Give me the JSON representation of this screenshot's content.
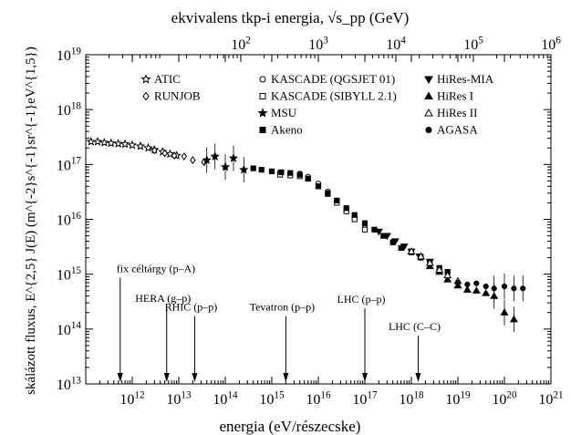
{
  "chart_data": {
    "type": "scatter",
    "title": "",
    "xlabel": "energia (eV/részecske)",
    "ylabel": "skálázott fluxus, E^{2,5} J(E) (m^{-2}s^{-1}sr^{-1}eV^{1,5})",
    "top_axis_label": "ekvivalens tkp-i energia, √s_pp (GeV)",
    "x_scale": "log",
    "y_scale": "log",
    "xlim": [
      100000000000.0,
      1e+21
    ],
    "ylim": [
      10000000000000.0,
      1e+19
    ],
    "top_xlim": [
      1,
      1000000.0
    ],
    "x_ticks": [
      {
        "exp": "12",
        "value": 1000000000000.0
      },
      {
        "exp": "13",
        "value": 10000000000000.0
      },
      {
        "exp": "14",
        "value": 100000000000000.0
      },
      {
        "exp": "15",
        "value": 1000000000000000.0
      },
      {
        "exp": "16",
        "value": 1e+16
      },
      {
        "exp": "17",
        "value": 1e+17
      },
      {
        "exp": "18",
        "value": 1e+18
      },
      {
        "exp": "19",
        "value": 1e+19
      },
      {
        "exp": "20",
        "value": 1e+20
      },
      {
        "exp": "21",
        "value": 1e+21
      }
    ],
    "y_ticks": [
      {
        "exp": "13",
        "value": 10000000000000.0
      },
      {
        "exp": "14",
        "value": 100000000000000.0
      },
      {
        "exp": "15",
        "value": 1000000000000000.0
      },
      {
        "exp": "16",
        "value": 1e+16
      },
      {
        "exp": "17",
        "value": 1e+17
      },
      {
        "exp": "18",
        "value": 1e+18
      },
      {
        "exp": "19",
        "value": 1e+19
      }
    ],
    "top_ticks": [
      {
        "exp": "2",
        "value": 100
      },
      {
        "exp": "3",
        "value": 1000
      },
      {
        "exp": "4",
        "value": 10000
      },
      {
        "exp": "5",
        "value": 100000
      },
      {
        "exp": "6",
        "value": 1000000
      }
    ],
    "grid": false,
    "legend_position": "top",
    "legend": [
      {
        "label": "ATIC",
        "marker": "star-open"
      },
      {
        "label": "RUNJOB",
        "marker": "diamond-open"
      },
      {
        "label": "KASCADE (QGSJET 01)",
        "marker": "circle-open"
      },
      {
        "label": "KASCADE (SIBYLL 2.1)",
        "marker": "square-open"
      },
      {
        "label": "MSU",
        "marker": "star-filled"
      },
      {
        "label": "Akeno",
        "marker": "square-filled"
      },
      {
        "label": "HiRes-MIA",
        "marker": "triangle-down-filled"
      },
      {
        "label": "HiRes I",
        "marker": "triangle-up-filled"
      },
      {
        "label": "HiRes II",
        "marker": "triangle-up-open"
      },
      {
        "label": "AGASA",
        "marker": "circle-filled"
      }
    ],
    "series": [
      {
        "name": "ATIC",
        "marker": "star-open",
        "x": [
          130000000000.0,
          180000000000.0,
          250000000000.0,
          350000000000.0,
          500000000000.0,
          700000000000.0,
          1000000000000.0,
          1500000000000.0,
          2200000000000.0,
          3000000000000.0,
          4500000000000.0,
          6500000000000.0,
          9000000000000.0
        ],
        "y": [
          2.6e+17,
          2.6e+17,
          2.5e+17,
          2.45e+17,
          2.4e+17,
          2.35e+17,
          2.25e+17,
          2.15e+17,
          2e+17,
          1.85e+17,
          1.7e+17,
          1.55e+17,
          1.45e+17
        ]
      },
      {
        "name": "RUNJOB",
        "marker": "diamond-open",
        "x": [
          3000000000000.0,
          5000000000000.0,
          8000000000000.0,
          13000000000000.0,
          20000000000000.0,
          35000000000000.0
        ],
        "y": [
          1.8e+17,
          1.6e+17,
          1.45e+17,
          1.4e+17,
          1.2e+17,
          1.1e+17
        ]
      },
      {
        "name": "MSU",
        "marker": "star-filled",
        "x": [
          40000000000000.0,
          60000000000000.0,
          100000000000000.0,
          150000000000000.0,
          250000000000000.0
        ],
        "y": [
          1.2e+17,
          1.4e+17,
          9e+16,
          1.3e+17,
          8e+16
        ]
      },
      {
        "name": "KASCADE (QGSJET 01)",
        "marker": "circle-open",
        "x": [
          1500000000000000.0,
          2500000000000000.0,
          4000000000000000.0,
          6000000000000000.0,
          1e+16,
          1.6e+16,
          2.5e+16,
          4e+16,
          6e+16,
          1e+17
        ],
        "y": [
          7.2e+16,
          7e+16,
          6.8e+16,
          6e+16,
          4.5e+16,
          3.2e+16,
          2.2e+16,
          1.5e+16,
          1.1e+16,
          7000000000000000.0
        ]
      },
      {
        "name": "KASCADE (SIBYLL 2.1)",
        "marker": "square-open",
        "x": [
          1500000000000000.0,
          2500000000000000.0,
          4000000000000000.0,
          6000000000000000.0,
          1e+16,
          1.6e+16,
          2.5e+16,
          4e+16,
          6e+16,
          1e+17
        ],
        "y": [
          6.5e+16,
          6.3e+16,
          6.1e+16,
          5.5e+16,
          4e+16,
          2.9e+16,
          2e+16,
          1.4e+16,
          1e+16,
          6500000000000000.0
        ]
      },
      {
        "name": "Akeno",
        "marker": "square-filled",
        "x": [
          400000000000000.0,
          600000000000000.0,
          1000000000000000.0,
          1600000000000000.0,
          2500000000000000.0,
          4000000000000000.0,
          6000000000000000.0,
          1e+16,
          1.6e+16,
          2.5e+16,
          4e+16,
          6e+16,
          1e+17,
          1.6e+17,
          2.5e+17,
          4e+17,
          6e+17,
          1e+18,
          1.6e+18,
          2.5e+18,
          4e+18,
          6e+18
        ],
        "y": [
          8.5e+16,
          8e+16,
          7.5e+16,
          7.2e+16,
          7e+16,
          6.5e+16,
          5.5e+16,
          4e+16,
          3e+16,
          2.2e+16,
          1.6e+16,
          1.2e+16,
          8500000000000000.0,
          6500000000000000.0,
          5000000000000000.0,
          3800000000000000.0,
          3000000000000000.0,
          2500000000000000.0,
          2000000000000000.0,
          1600000000000000.0,
          1300000000000000.0,
          1100000000000000.0
        ]
      },
      {
        "name": "HiRes-MIA",
        "marker": "triangle-down-filled",
        "x": [
          2e+17,
          3e+17,
          4.5e+17,
          7e+17,
          1e+18,
          1.5e+18,
          2.5e+18
        ],
        "y": [
          6000000000000000.0,
          5000000000000000.0,
          4000000000000000.0,
          3200000000000000.0,
          2600000000000000.0,
          2100000000000000.0,
          1700000000000000.0
        ]
      },
      {
        "name": "HiRes I",
        "marker": "triangle-up-filled",
        "x": [
          2.5e+18,
          4e+18,
          6e+18,
          1e+19,
          1.6e+19,
          2.5e+19,
          4e+19,
          6e+19,
          1e+20,
          1.6e+20
        ],
        "y": [
          1400000000000000.0,
          1100000000000000.0,
          800000000000000.0,
          620000000000000.0,
          520000000000000.0,
          500000000000000.0,
          450000000000000.0,
          400000000000000.0,
          200000000000000.0,
          150000000000000.0
        ]
      },
      {
        "name": "HiRes II",
        "marker": "triangle-up-open",
        "x": [
          1e+18,
          1.6e+18,
          2.5e+18,
          4e+18,
          6e+18,
          1e+19
        ],
        "y": [
          2600000000000000.0,
          2100000000000000.0,
          1600000000000000.0,
          1200000000000000.0,
          950000000000000.0,
          750000000000000.0
        ]
      },
      {
        "name": "AGASA",
        "marker": "circle-filled",
        "x": [
          1e+19,
          1.6e+19,
          2.5e+19,
          4e+19,
          6e+19,
          1e+20,
          1.6e+20,
          2.5e+20
        ],
        "y": [
          700000000000000.0,
          650000000000000.0,
          680000000000000.0,
          600000000000000.0,
          550000000000000.0,
          600000000000000.0,
          550000000000000.0,
          550000000000000.0
        ]
      }
    ],
    "annotations": [
      {
        "text": "fix céltárgy (p–A)",
        "x": 550000000000.0,
        "label_y": 800000000000000.0
      },
      {
        "text": "HERA (g–p)",
        "x": 5500000000000.0,
        "label_y": 230000000000000.0
      },
      {
        "text": "RHIC (p–p)",
        "x": 22000000000000.0,
        "label_y": 160000000000000.0
      },
      {
        "text": "Tevatron (p–p)",
        "x": 2000000000000000.0,
        "label_y": 160000000000000.0
      },
      {
        "text": "LHC (p–p)",
        "x": 1e+17,
        "label_y": 220000000000000.0
      },
      {
        "text": "LHC (C–C)",
        "x": 1.4e+18,
        "label_y": 70000000000000.0
      }
    ]
  }
}
